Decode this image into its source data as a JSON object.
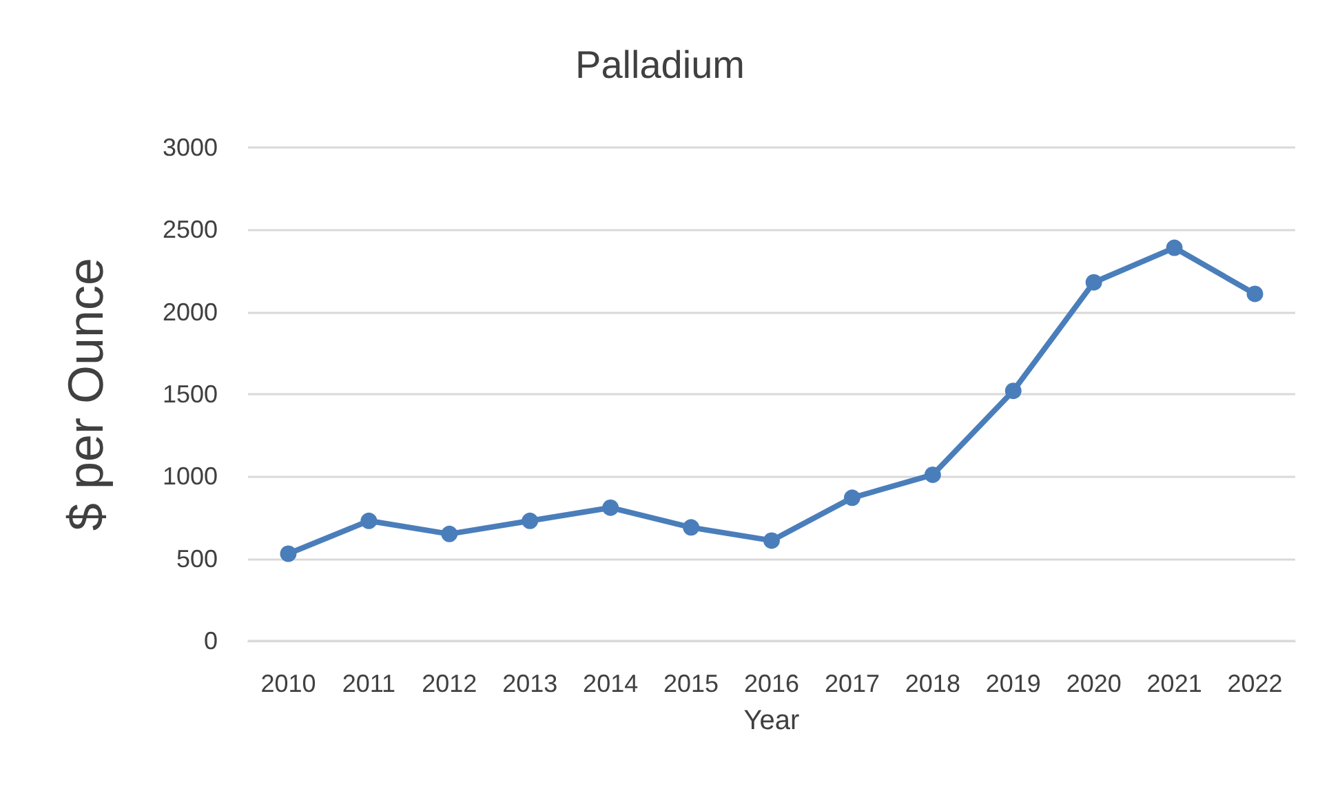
{
  "chart_data": {
    "type": "line",
    "title": "Palladium",
    "xlabel": "Year",
    "ylabel": "$ per Ounce",
    "categories": [
      "2010",
      "2011",
      "2012",
      "2013",
      "2014",
      "2015",
      "2016",
      "2017",
      "2018",
      "2019",
      "2020",
      "2021",
      "2022"
    ],
    "series": [
      {
        "color": "#4a7ebb",
        "values": [
          530,
          730,
          650,
          730,
          810,
          690,
          610,
          870,
          1010,
          1520,
          2180,
          2390,
          2110
        ]
      }
    ],
    "ylim": [
      0,
      3000
    ],
    "yticks": [
      0,
      500,
      1000,
      1500,
      2000,
      2500,
      3000
    ],
    "grid": "y",
    "marker": "circle",
    "line_style": "solid"
  }
}
